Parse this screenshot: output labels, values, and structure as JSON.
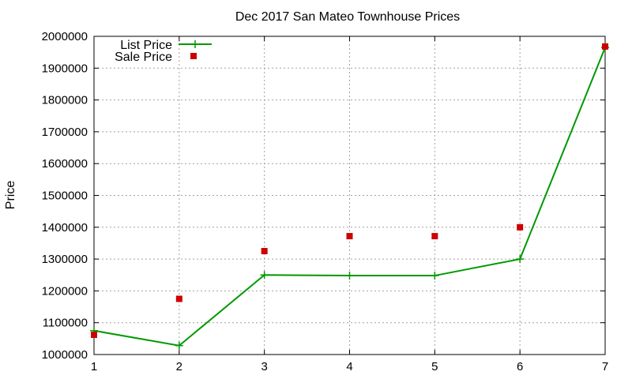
{
  "chart_data": {
    "type": "line",
    "title": "Dec 2017 San Mateo Townhouse Prices",
    "xlabel": "",
    "ylabel": "Price",
    "xlim": [
      1,
      7
    ],
    "ylim": [
      1000000,
      2000000
    ],
    "x_ticks": [
      1,
      2,
      3,
      4,
      5,
      6,
      7
    ],
    "y_ticks": [
      1000000,
      1100000,
      1200000,
      1300000,
      1400000,
      1500000,
      1600000,
      1700000,
      1800000,
      1900000,
      2000000
    ],
    "grid": true,
    "legend_position": "top-left",
    "series": [
      {
        "name": "List Price",
        "style": "line with plus markers",
        "color": "#009900",
        "x": [
          1,
          2,
          3,
          4,
          5,
          6,
          7
        ],
        "values": [
          1075000,
          1028000,
          1250000,
          1248000,
          1248000,
          1300000,
          1965000
        ]
      },
      {
        "name": "Sale Price",
        "style": "square markers",
        "color": "#cc0000",
        "x": [
          1,
          2,
          3,
          4,
          5,
          6,
          7
        ],
        "values": [
          1062000,
          1175000,
          1325000,
          1372000,
          1372000,
          1400000,
          1968000
        ]
      }
    ]
  }
}
